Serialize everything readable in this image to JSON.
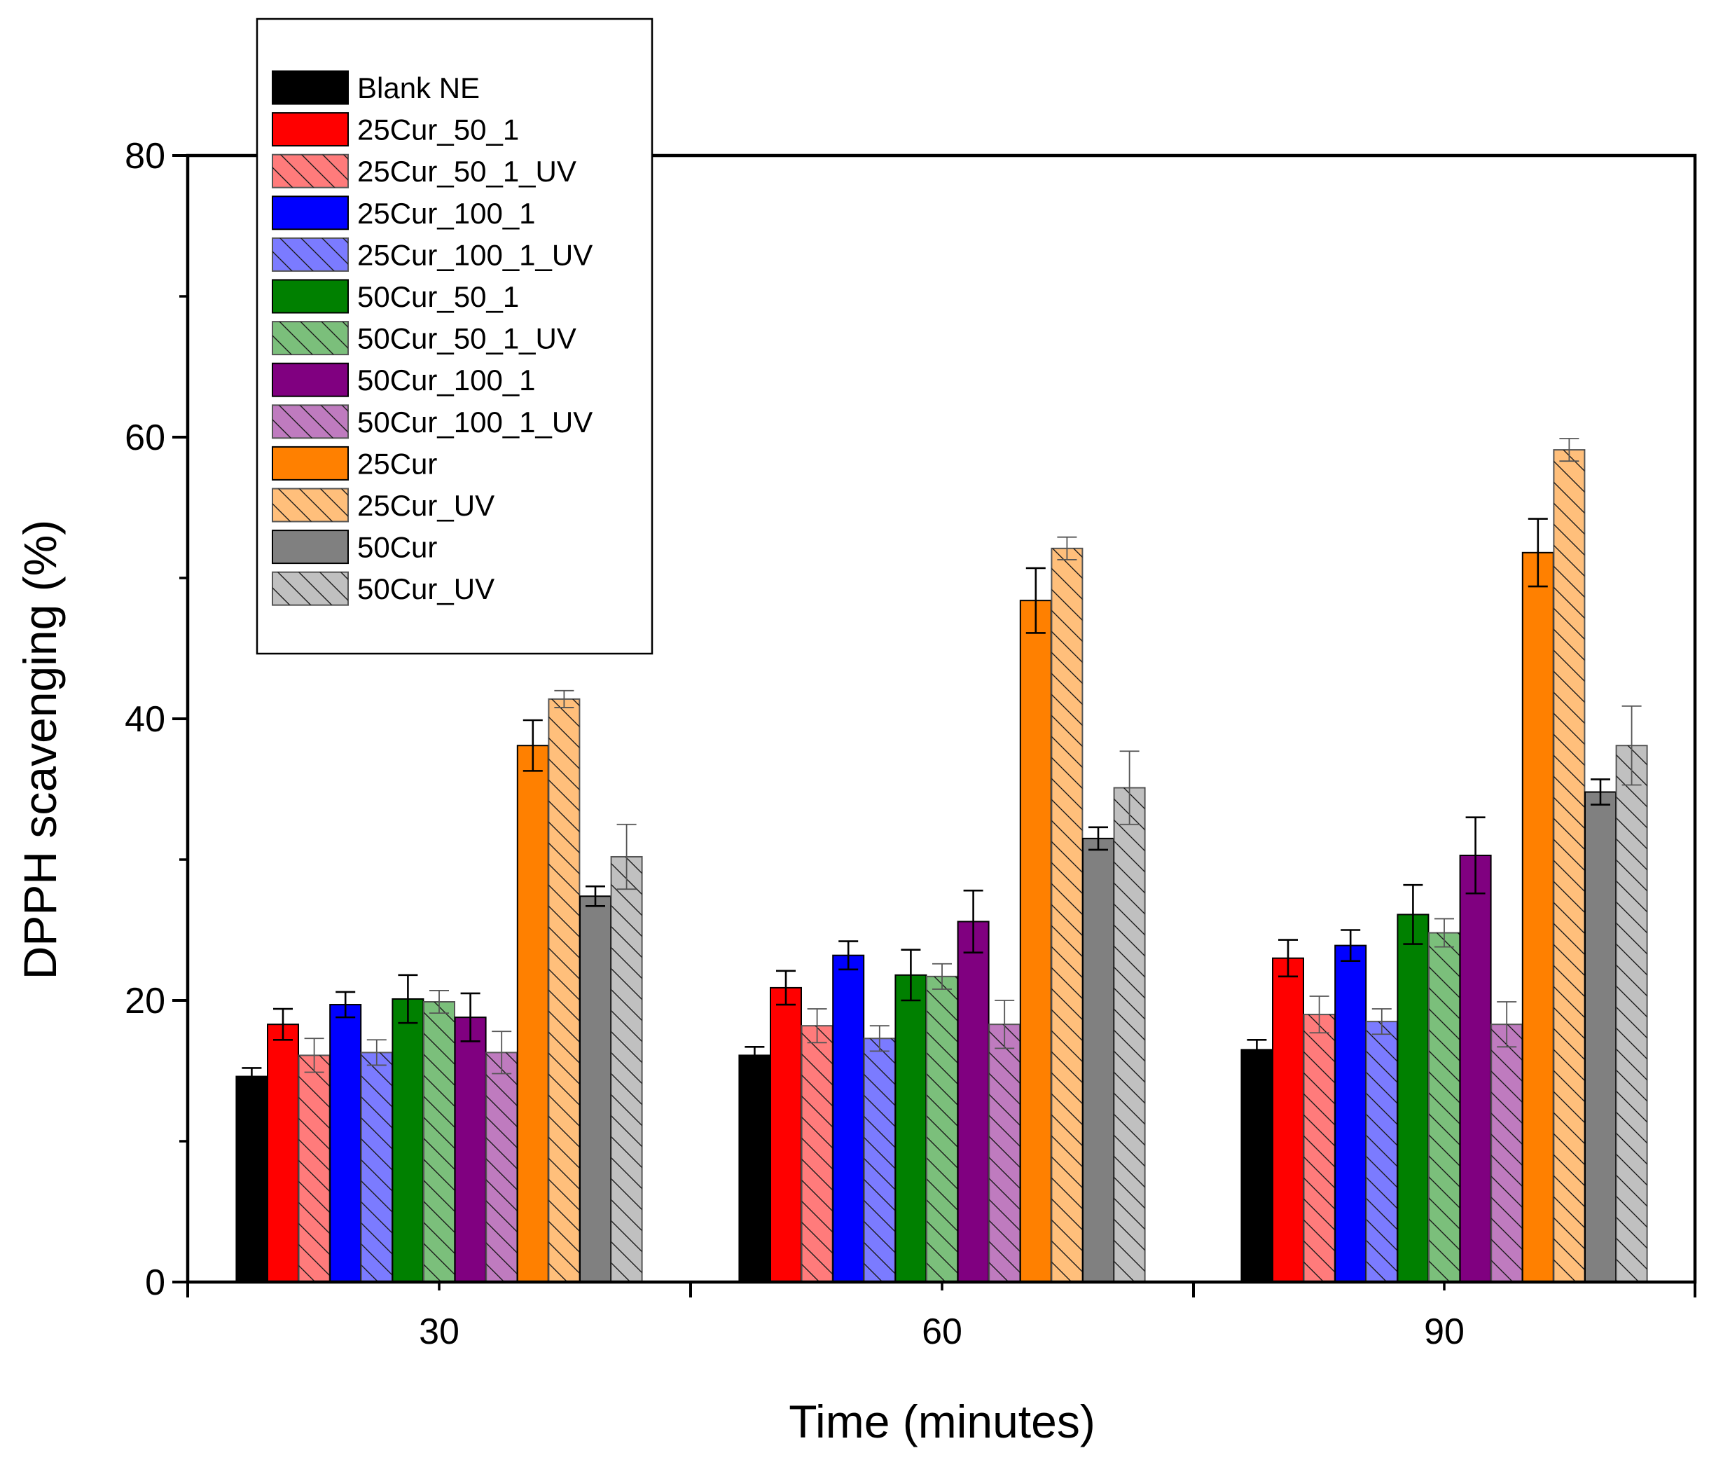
{
  "chart_data": {
    "type": "bar",
    "title": "",
    "xlabel": "Time (minutes)",
    "ylabel": "DPPH scavenging (%)",
    "categories": [
      "30",
      "60",
      "90"
    ],
    "ylim": [
      0,
      80
    ],
    "yticks": [
      "0",
      "20",
      "40",
      "60",
      "80"
    ],
    "grid": false,
    "legend_position": "top-left",
    "series": [
      {
        "name": "Blank NE",
        "color": "#000000",
        "hatched": false,
        "values": [
          14.6,
          16.1,
          16.5
        ],
        "errors": [
          0.6,
          0.6,
          0.7
        ]
      },
      {
        "name": "25Cur_50_1",
        "color": "#ff0000",
        "hatched": false,
        "values": [
          18.3,
          20.9,
          23.0
        ],
        "errors": [
          1.1,
          1.2,
          1.3
        ]
      },
      {
        "name": "25Cur_50_1_UV",
        "color": "#ff7b7b",
        "hatched": true,
        "values": [
          16.1,
          18.2,
          19.0
        ],
        "errors": [
          1.2,
          1.2,
          1.3
        ]
      },
      {
        "name": "25Cur_100_1",
        "color": "#0000ff",
        "hatched": false,
        "values": [
          19.7,
          23.2,
          23.9
        ],
        "errors": [
          0.9,
          1.0,
          1.1
        ]
      },
      {
        "name": "25Cur_100_1_UV",
        "color": "#7b7bff",
        "hatched": true,
        "values": [
          16.3,
          17.3,
          18.5
        ],
        "errors": [
          0.9,
          0.9,
          0.9
        ]
      },
      {
        "name": "50Cur_50_1",
        "color": "#008000",
        "hatched": false,
        "values": [
          20.1,
          21.8,
          26.1
        ],
        "errors": [
          1.7,
          1.8,
          2.1
        ]
      },
      {
        "name": "50Cur_50_1_UV",
        "color": "#7bbf7b",
        "hatched": true,
        "values": [
          19.9,
          21.7,
          24.8
        ],
        "errors": [
          0.8,
          0.9,
          1.0
        ]
      },
      {
        "name": "50Cur_100_1",
        "color": "#800080",
        "hatched": false,
        "values": [
          18.8,
          25.6,
          30.3
        ],
        "errors": [
          1.7,
          2.2,
          2.7
        ]
      },
      {
        "name": "50Cur_100_1_UV",
        "color": "#bf7bbf",
        "hatched": true,
        "values": [
          16.3,
          18.3,
          18.3
        ],
        "errors": [
          1.5,
          1.7,
          1.6
        ]
      },
      {
        "name": "25Cur",
        "color": "#ff8000",
        "hatched": false,
        "values": [
          38.1,
          48.4,
          51.8
        ],
        "errors": [
          1.8,
          2.3,
          2.4
        ]
      },
      {
        "name": "25Cur_UV",
        "color": "#ffbf7b",
        "hatched": true,
        "values": [
          41.4,
          52.1,
          59.1
        ],
        "errors": [
          0.6,
          0.8,
          0.8
        ]
      },
      {
        "name": "50Cur",
        "color": "#808080",
        "hatched": false,
        "values": [
          27.4,
          31.5,
          34.8
        ],
        "errors": [
          0.7,
          0.8,
          0.9
        ]
      },
      {
        "name": "50Cur_UV",
        "color": "#c0c0c0",
        "hatched": true,
        "values": [
          30.2,
          35.1,
          38.1
        ],
        "errors": [
          2.3,
          2.6,
          2.8
        ]
      }
    ]
  }
}
